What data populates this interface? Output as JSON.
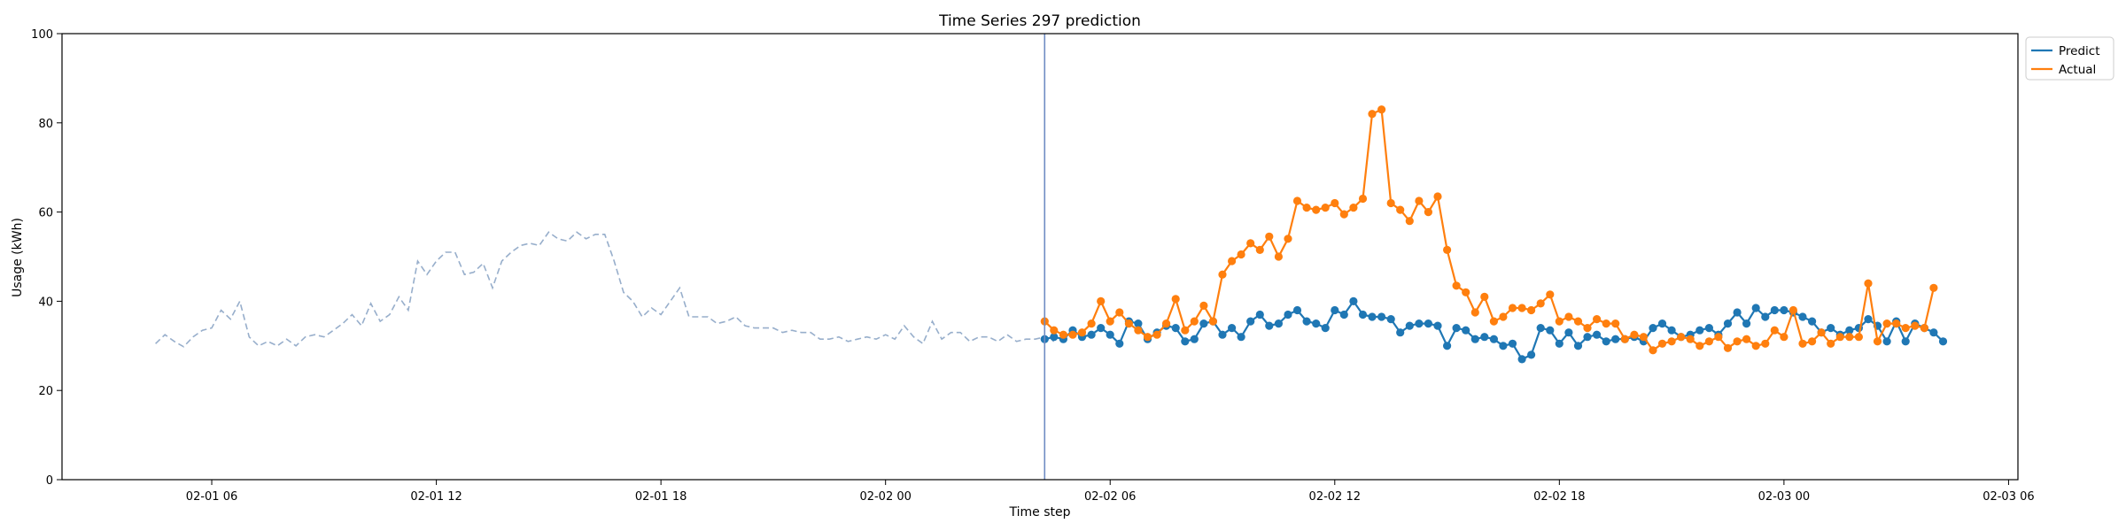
{
  "chart_data": {
    "type": "line",
    "title": "Time Series 297 prediction",
    "xlabel": "Time step",
    "ylabel": "Usage (kWh)",
    "ylim": [
      0,
      100
    ],
    "yticks": [
      0,
      20,
      40,
      60,
      80,
      100
    ],
    "xlim": [
      "2023-02-01 02:00",
      "2023-02-03 06:15"
    ],
    "xticks": [
      {
        "t": "2023-02-01 06:00",
        "label": "02-01 06"
      },
      {
        "t": "2023-02-01 12:00",
        "label": "02-01 12"
      },
      {
        "t": "2023-02-01 18:00",
        "label": "02-01 18"
      },
      {
        "t": "2023-02-02 00:00",
        "label": "02-02 00"
      },
      {
        "t": "2023-02-02 06:00",
        "label": "02-02 06"
      },
      {
        "t": "2023-02-02 12:00",
        "label": "02-02 12"
      },
      {
        "t": "2023-02-02 18:00",
        "label": "02-02 18"
      },
      {
        "t": "2023-02-03 00:00",
        "label": "02-03 00"
      },
      {
        "t": "2023-02-03 06:00",
        "label": "02-03 06"
      }
    ],
    "grid": false,
    "legend_position": "top-right outside",
    "forecast_start": "2023-02-02 04:15",
    "history": {
      "start": "2023-02-01 04:30",
      "step_minutes": 15,
      "color": "#97aecb",
      "style": "dashed",
      "values": [
        30.5,
        32.5,
        31.0,
        29.8,
        32.0,
        33.5,
        34.0,
        38.0,
        36.0,
        40.0,
        32.0,
        30.0,
        31.0,
        30.0,
        31.5,
        30.0,
        32.0,
        32.5,
        32.0,
        33.5,
        35.0,
        37.0,
        34.5,
        39.5,
        35.5,
        37.0,
        41.0,
        38.0,
        49.0,
        46.0,
        49.0,
        51.0,
        51.0,
        46.0,
        46.5,
        48.5,
        43.0,
        49.0,
        51.0,
        52.5,
        53.0,
        52.5,
        55.5,
        54.0,
        53.5,
        55.5,
        54.0,
        55.0,
        55.0,
        49.0,
        42.0,
        40.0,
        36.5,
        38.5,
        37.0,
        40.0,
        43.0,
        36.5,
        36.5,
        36.5,
        35.0,
        35.5,
        36.5,
        34.5,
        34.0,
        34.0,
        34.0,
        33.0,
        33.5,
        33.0,
        33.0,
        31.5,
        31.5,
        32.0,
        31.0,
        31.5,
        32.0,
        31.5,
        32.5,
        31.5,
        34.5,
        32.0,
        30.5,
        35.5,
        31.5,
        33.0,
        33.0,
        31.0,
        32.0,
        32.0,
        31.0,
        32.5,
        31.0,
        31.5,
        31.5,
        32.0,
        31.0
      ]
    },
    "series": [
      {
        "name": "Predict",
        "color": "#1f77b4",
        "start": "2023-02-02 04:15",
        "step_minutes": 15,
        "values": [
          31.5,
          32.0,
          31.5,
          33.5,
          32.0,
          32.5,
          34.0,
          32.5,
          30.5,
          35.5,
          35.0,
          31.5,
          33.0,
          34.5,
          34.0,
          31.0,
          31.5,
          35.0,
          35.5,
          32.5,
          34.0,
          32.0,
          35.5,
          37.0,
          34.5,
          35.0,
          37.0,
          38.0,
          35.5,
          35.0,
          34.0,
          38.0,
          37.0,
          40.0,
          37.0,
          36.5,
          36.5,
          36.0,
          33.0,
          34.5,
          35.0,
          35.0,
          34.5,
          30.0,
          34.0,
          33.5,
          31.5,
          32.0,
          31.5,
          30.0,
          30.5,
          27.0,
          28.0,
          34.0,
          33.5,
          30.5,
          33.0,
          30.0,
          32.0,
          32.5,
          31.0,
          31.5,
          31.5,
          32.0,
          31.0,
          34.0,
          35.0,
          33.5,
          32.0,
          32.5,
          33.5,
          34.0,
          32.5,
          35.0,
          37.5,
          35.0,
          38.5,
          36.5,
          38.0,
          38.0,
          37.5,
          36.5,
          35.5,
          33.0,
          34.0,
          32.5,
          33.5,
          34.0,
          36.0,
          34.5,
          31.0,
          35.5,
          31.0,
          35.0,
          34.0,
          33.0,
          31.0
        ]
      },
      {
        "name": "Actual",
        "color": "#ff7f0e",
        "start": "2023-02-02 04:15",
        "step_minutes": 15,
        "values": [
          35.5,
          33.5,
          32.5,
          32.5,
          33.0,
          35.0,
          40.0,
          35.5,
          37.5,
          35.0,
          33.5,
          32.0,
          32.5,
          35.0,
          40.5,
          33.5,
          35.5,
          39.0,
          35.5,
          46.0,
          49.0,
          50.5,
          53.0,
          51.5,
          54.5,
          50.0,
          54.0,
          62.5,
          61.0,
          60.5,
          61.0,
          62.0,
          59.5,
          61.0,
          63.0,
          82.0,
          83.0,
          62.0,
          60.5,
          58.0,
          62.5,
          60.0,
          63.5,
          51.5,
          43.5,
          42.0,
          37.5,
          41.0,
          35.5,
          36.5,
          38.5,
          38.5,
          38.0,
          39.5,
          41.5,
          35.5,
          36.5,
          35.5,
          34.0,
          36.0,
          35.0,
          35.0,
          31.5,
          32.5,
          32.0,
          29.0,
          30.5,
          31.0,
          32.0,
          31.5,
          30.0,
          31.0,
          32.0,
          29.5,
          31.0,
          31.5,
          30.0,
          30.5,
          33.5,
          32.0,
          38.0,
          30.5,
          31.0,
          33.0,
          30.5,
          32.0,
          32.0,
          32.0,
          44.0,
          31.0,
          35.0,
          35.0,
          34.0,
          34.5,
          34.0,
          43.0
        ]
      }
    ]
  }
}
